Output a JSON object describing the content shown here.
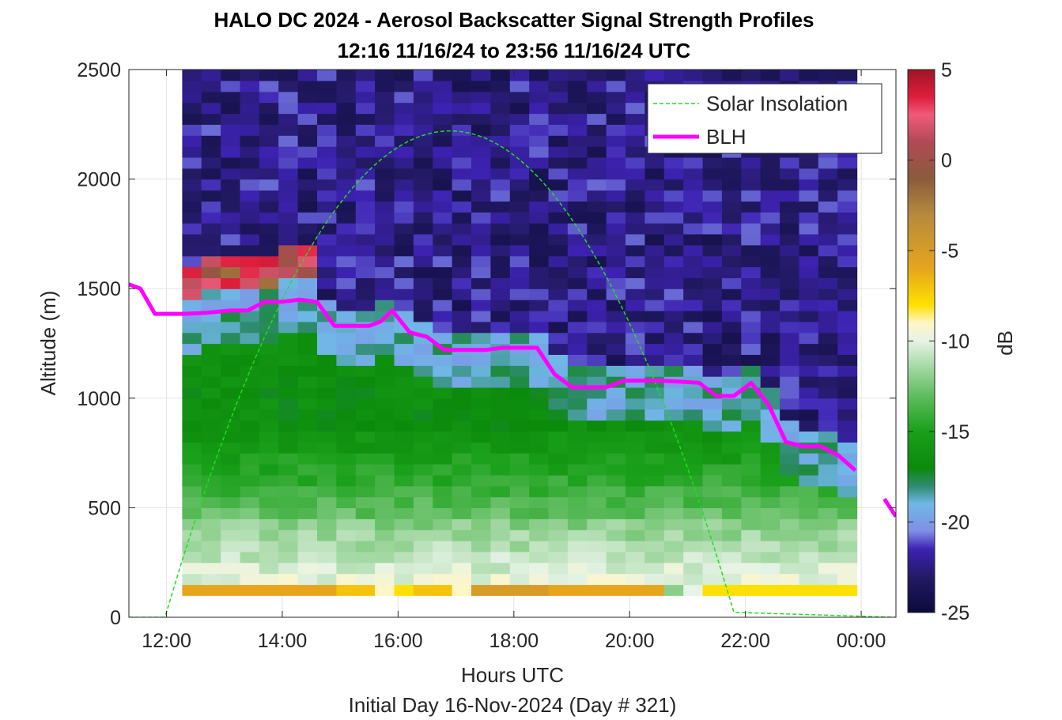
{
  "chart_data": {
    "type": "heatmap",
    "title": "HALO DC 2024 - Aerosol Backscatter Signal Strength Profiles",
    "subtitle": "12:16 11/16/24 to 23:56 11/16/24  UTC",
    "xlabel": "Hours UTC",
    "ylabel": "Altitude (m)",
    "footer": "Initial Day 16-Nov-2024 (Day # 321)",
    "colorbar_label": "dB",
    "x_ticks": [
      "12:00",
      "14:00",
      "16:00",
      "18:00",
      "20:00",
      "22:00",
      "00:00"
    ],
    "y_ticks": [
      "0",
      "500",
      "1000",
      "1500",
      "2000",
      "2500"
    ],
    "colorbar_ticks": [
      "5",
      "0",
      "-5",
      "-10",
      "-15",
      "-20",
      "-25"
    ],
    "xlim": [
      11.35,
      24.6
    ],
    "ylim": [
      0,
      2500
    ],
    "clim": [
      -25,
      5
    ],
    "grid": true,
    "legend_position": "top-right",
    "legend": [
      {
        "name": "Solar Insolation",
        "style": "dashed",
        "color": "#22dd22"
      },
      {
        "name": "BLH",
        "style": "solid",
        "color": "#ff00ff"
      }
    ],
    "heatmap": {
      "x_start": 12.27,
      "x_end": 23.93,
      "bin_hours": 0.333,
      "y_start": 100,
      "y_end": 2500,
      "bin_m": 50,
      "surface_layer_db": [
        -6,
        -6,
        -6,
        -6,
        -6,
        -6,
        -6,
        -6,
        -7,
        -7,
        -9,
        -8,
        -7,
        -7,
        -9,
        -5,
        -5,
        -5,
        -5,
        -6,
        -6,
        -6,
        -6,
        -6,
        -6,
        -12,
        -10,
        -8,
        -8,
        -8,
        -8,
        -8,
        -8,
        -8,
        -8,
        -8,
        -8,
        -8,
        -8,
        -8,
        -9,
        -12
      ]
    },
    "series": [
      {
        "name": "BLH",
        "x": [
          11.35,
          11.55,
          11.8,
          12.3,
          12.7,
          13.1,
          13.4,
          13.7,
          14.0,
          14.3,
          14.6,
          14.9,
          15.2,
          15.5,
          15.7,
          15.9,
          16.2,
          16.5,
          16.8,
          17.1,
          17.5,
          17.8,
          18.1,
          18.4,
          18.7,
          19.0,
          19.3,
          19.6,
          19.9,
          20.2,
          20.5,
          20.9,
          21.2,
          21.5,
          21.8,
          22.1,
          22.4,
          22.7,
          23.0,
          23.3,
          23.6,
          23.9,
          24.1,
          24.4,
          24.6
        ],
        "y": [
          1520,
          1500,
          1385,
          1385,
          1390,
          1400,
          1400,
          1440,
          1440,
          1450,
          1440,
          1330,
          1330,
          1330,
          1350,
          1400,
          1300,
          1280,
          1220,
          1220,
          1220,
          1230,
          1230,
          1230,
          1110,
          1050,
          1050,
          1050,
          1080,
          1080,
          1080,
          1075,
          1070,
          1010,
          1010,
          1070,
          970,
          800,
          780,
          780,
          740,
          670,
          null,
          540,
          460
        ]
      },
      {
        "name": "Solar Insolation",
        "peak_hour": 16.9,
        "x_start": 11.95,
        "x_end": 21.8,
        "peak_altitude": 2220
      }
    ]
  }
}
